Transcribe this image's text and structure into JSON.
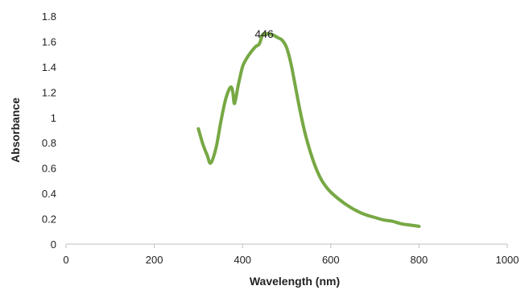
{
  "chart_data": {
    "type": "line",
    "xlabel": "Wavelength (nm)",
    "ylabel": "Absorbance",
    "xlim": [
      0,
      1000
    ],
    "ylim": [
      0,
      1.8
    ],
    "xticks": [
      "0",
      "200",
      "400",
      "600",
      "800",
      "1000"
    ],
    "yticks": [
      "0",
      "0.2",
      "0.4",
      "0.6",
      "0.8",
      "1",
      "1.2",
      "1.4",
      "1.6",
      "1.8"
    ],
    "grid": false,
    "legend": "none",
    "series": [
      {
        "color": "#77a844",
        "x": [
          300,
          310,
          320,
          328,
          340,
          350,
          360,
          368,
          374,
          378,
          382,
          390,
          400,
          410,
          420,
          430,
          438,
          445,
          450,
          460,
          470,
          480,
          490,
          500,
          510,
          520,
          530,
          540,
          550,
          560,
          570,
          580,
          590,
          600,
          620,
          640,
          660,
          680,
          700,
          720,
          740,
          760,
          780,
          800
        ],
        "y": [
          0.91,
          0.79,
          0.7,
          0.64,
          0.76,
          0.95,
          1.12,
          1.21,
          1.24,
          1.2,
          1.11,
          1.25,
          1.4,
          1.47,
          1.52,
          1.56,
          1.58,
          1.65,
          1.66,
          1.66,
          1.65,
          1.63,
          1.61,
          1.55,
          1.42,
          1.24,
          1.06,
          0.9,
          0.77,
          0.66,
          0.57,
          0.5,
          0.45,
          0.41,
          0.35,
          0.3,
          0.26,
          0.23,
          0.21,
          0.19,
          0.18,
          0.16,
          0.15,
          0.14
        ]
      }
    ],
    "annotations": [
      {
        "text": "446",
        "x": 446,
        "y": 1.66
      }
    ]
  }
}
